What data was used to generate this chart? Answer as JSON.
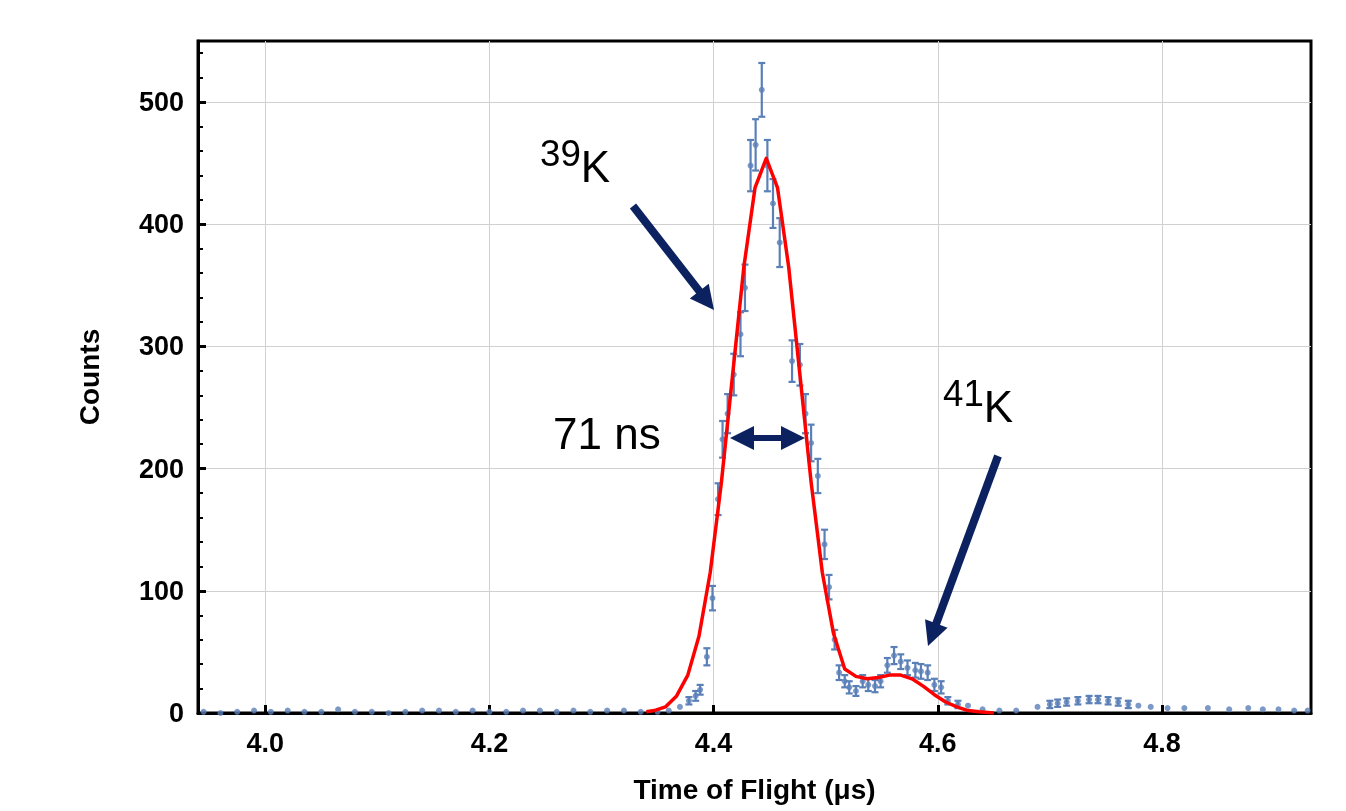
{
  "chart_data": {
    "type": "scatter",
    "xlabel": "Time of Flight (μs)",
    "ylabel": "Counts",
    "xlim": [
      3.94,
      4.933
    ],
    "xticks": [
      {
        "value": 4,
        "label": "4.0"
      },
      4.2,
      4.4,
      4.6,
      4.8
    ],
    "ylim": [
      0,
      550
    ],
    "yticks": [
      0,
      100,
      200,
      300,
      400,
      500
    ],
    "grid": true,
    "annotations": [
      "$^{39}$K",
      "$^{41}$K",
      "71 ns"
    ],
    "series": [
      {
        "marker": "circle",
        "color": "#5b80b8",
        "x": [
          3.945,
          3.96,
          3.975,
          3.99,
          4.005,
          4.02,
          4.035,
          4.05,
          4.065,
          4.08,
          4.095,
          4.11,
          4.125,
          4.14,
          4.155,
          4.17,
          4.185,
          4.2,
          4.215,
          4.23,
          4.245,
          4.26,
          4.275,
          4.29,
          4.305,
          4.32,
          4.335,
          4.35,
          4.36,
          4.37,
          4.378,
          4.384,
          4.388,
          4.394,
          4.399,
          4.404,
          4.408,
          4.4125,
          4.418,
          4.424,
          4.428,
          4.433,
          4.4375,
          4.443,
          4.448,
          4.453,
          4.459,
          4.47,
          4.477,
          4.482,
          4.487,
          4.493,
          4.499,
          4.503,
          4.508,
          4.512,
          4.517,
          4.521,
          4.527,
          4.533,
          4.538,
          4.544,
          4.549,
          4.555,
          4.561,
          4.567,
          4.573,
          4.58,
          4.585,
          4.591,
          4.597,
          4.603,
          4.609,
          4.618,
          4.627,
          4.64,
          4.655,
          4.67,
          4.689,
          4.7,
          4.707,
          4.715,
          4.725,
          4.735,
          4.743,
          4.752,
          4.761,
          4.77,
          4.779,
          4.79,
          4.805,
          4.82,
          4.841,
          4.86,
          4.877,
          4.89,
          4.904,
          4.918,
          4.93
        ],
        "values": [
          1,
          0,
          1,
          2,
          1,
          2,
          1,
          1,
          3,
          1,
          1,
          0,
          1,
          2,
          2,
          1,
          2,
          1,
          1,
          2,
          2,
          1,
          2,
          1,
          2,
          2,
          1,
          1,
          2,
          5,
          10,
          14,
          19,
          46,
          94,
          175,
          224,
          245,
          277,
          310,
          348,
          448,
          465,
          510,
          448,
          417,
          385,
          288,
          285,
          245,
          221,
          194,
          138,
          103,
          60,
          33,
          26,
          21,
          18,
          26,
          23,
          22,
          26,
          39,
          47,
          42,
          37,
          35,
          34,
          33,
          23,
          21,
          10,
          7,
          6,
          3,
          2,
          2,
          5,
          7,
          8,
          9,
          10,
          11,
          11,
          10,
          9,
          7,
          6,
          5,
          4,
          4,
          4,
          3,
          4,
          3,
          3,
          2,
          2
        ],
        "errors": [
          null,
          null,
          null,
          null,
          null,
          null,
          null,
          null,
          null,
          null,
          null,
          null,
          null,
          null,
          null,
          null,
          null,
          null,
          null,
          null,
          null,
          null,
          null,
          null,
          null,
          null,
          null,
          null,
          null,
          null,
          3,
          4,
          4,
          7,
          10,
          13,
          15,
          16,
          17,
          18,
          19,
          21,
          21,
          22,
          21,
          20,
          20,
          17,
          17,
          16,
          15,
          14,
          12,
          10,
          8,
          6,
          5,
          5,
          4,
          5,
          5,
          5,
          5,
          6,
          7,
          6,
          6,
          6,
          6,
          6,
          5,
          5,
          3,
          3,
          null,
          null,
          null,
          null,
          null,
          3,
          3,
          3,
          3,
          3,
          3,
          3,
          3,
          3,
          null,
          null,
          null,
          null,
          null,
          null,
          null,
          null,
          null,
          null,
          null
        ]
      },
      {
        "type": "line",
        "marker": "none",
        "color": "#ff0000",
        "x": [
          4.34,
          4.347,
          4.357,
          4.367,
          4.377,
          4.387,
          4.397,
          4.407,
          4.417,
          4.427,
          4.437,
          4.447,
          4.457,
          4.467,
          4.477,
          4.487,
          4.497,
          4.507,
          4.517,
          4.527,
          4.537,
          4.547,
          4.557,
          4.567,
          4.577,
          4.587,
          4.597,
          4.607,
          4.617,
          4.627,
          4.637,
          4.65
        ],
        "values": [
          1,
          2,
          5,
          14,
          31,
          63,
          115,
          189,
          277,
          365,
          430,
          454,
          430,
          365,
          277,
          189,
          115,
          65,
          36,
          30,
          28,
          29,
          31,
          31,
          28,
          22,
          15,
          9,
          5,
          2,
          1,
          0
        ]
      }
    ]
  }
}
